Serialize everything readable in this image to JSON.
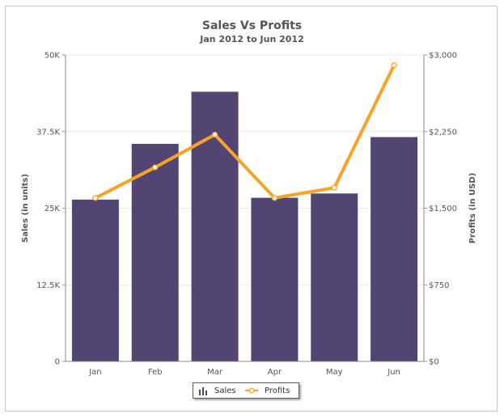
{
  "chart_data": {
    "type": "bar+line",
    "title": "Sales Vs Profits",
    "subtitle": "Jan 2012 to Jun 2012",
    "categories": [
      "Jan",
      "Feb",
      "Mar",
      "Apr",
      "May",
      "Jun"
    ],
    "primary_axis": {
      "label": "Sales (in units)",
      "ylim": [
        0,
        50000
      ],
      "ticks": [
        {
          "value": 0,
          "label": "0"
        },
        {
          "value": 12500,
          "label": "12.5K"
        },
        {
          "value": 25000,
          "label": "25K"
        },
        {
          "value": 37500,
          "label": "37.5K"
        },
        {
          "value": 50000,
          "label": "50K"
        }
      ]
    },
    "secondary_axis": {
      "label": "Profits (in USD)",
      "ylim": [
        0,
        3000
      ],
      "ticks": [
        {
          "value": 0,
          "label": "$0"
        },
        {
          "value": 750,
          "label": "$750"
        },
        {
          "value": 1500,
          "label": "$1,500"
        },
        {
          "value": 2250,
          "label": "$2,250"
        },
        {
          "value": 3000,
          "label": "$3,000"
        }
      ]
    },
    "series": [
      {
        "name": "Sales",
        "type": "bar",
        "axis": "primary",
        "color": "#524571",
        "values": [
          26400,
          35500,
          44000,
          26700,
          27400,
          36600
        ]
      },
      {
        "name": "Profits",
        "type": "line",
        "axis": "secondary",
        "color": "#f8a228",
        "values": [
          1600,
          1900,
          2220,
          1600,
          1700,
          2900
        ]
      }
    ],
    "grid": true,
    "legend_position": "bottom"
  },
  "colors": {
    "bar": "#524571",
    "line": "#f8a228",
    "grid": "#e8e8e8",
    "axis_text": "#555555"
  },
  "legend": {
    "items": [
      {
        "label": "Sales",
        "icon": "bar-chart-icon"
      },
      {
        "label": "Profits",
        "icon": "line-marker-icon"
      }
    ]
  }
}
